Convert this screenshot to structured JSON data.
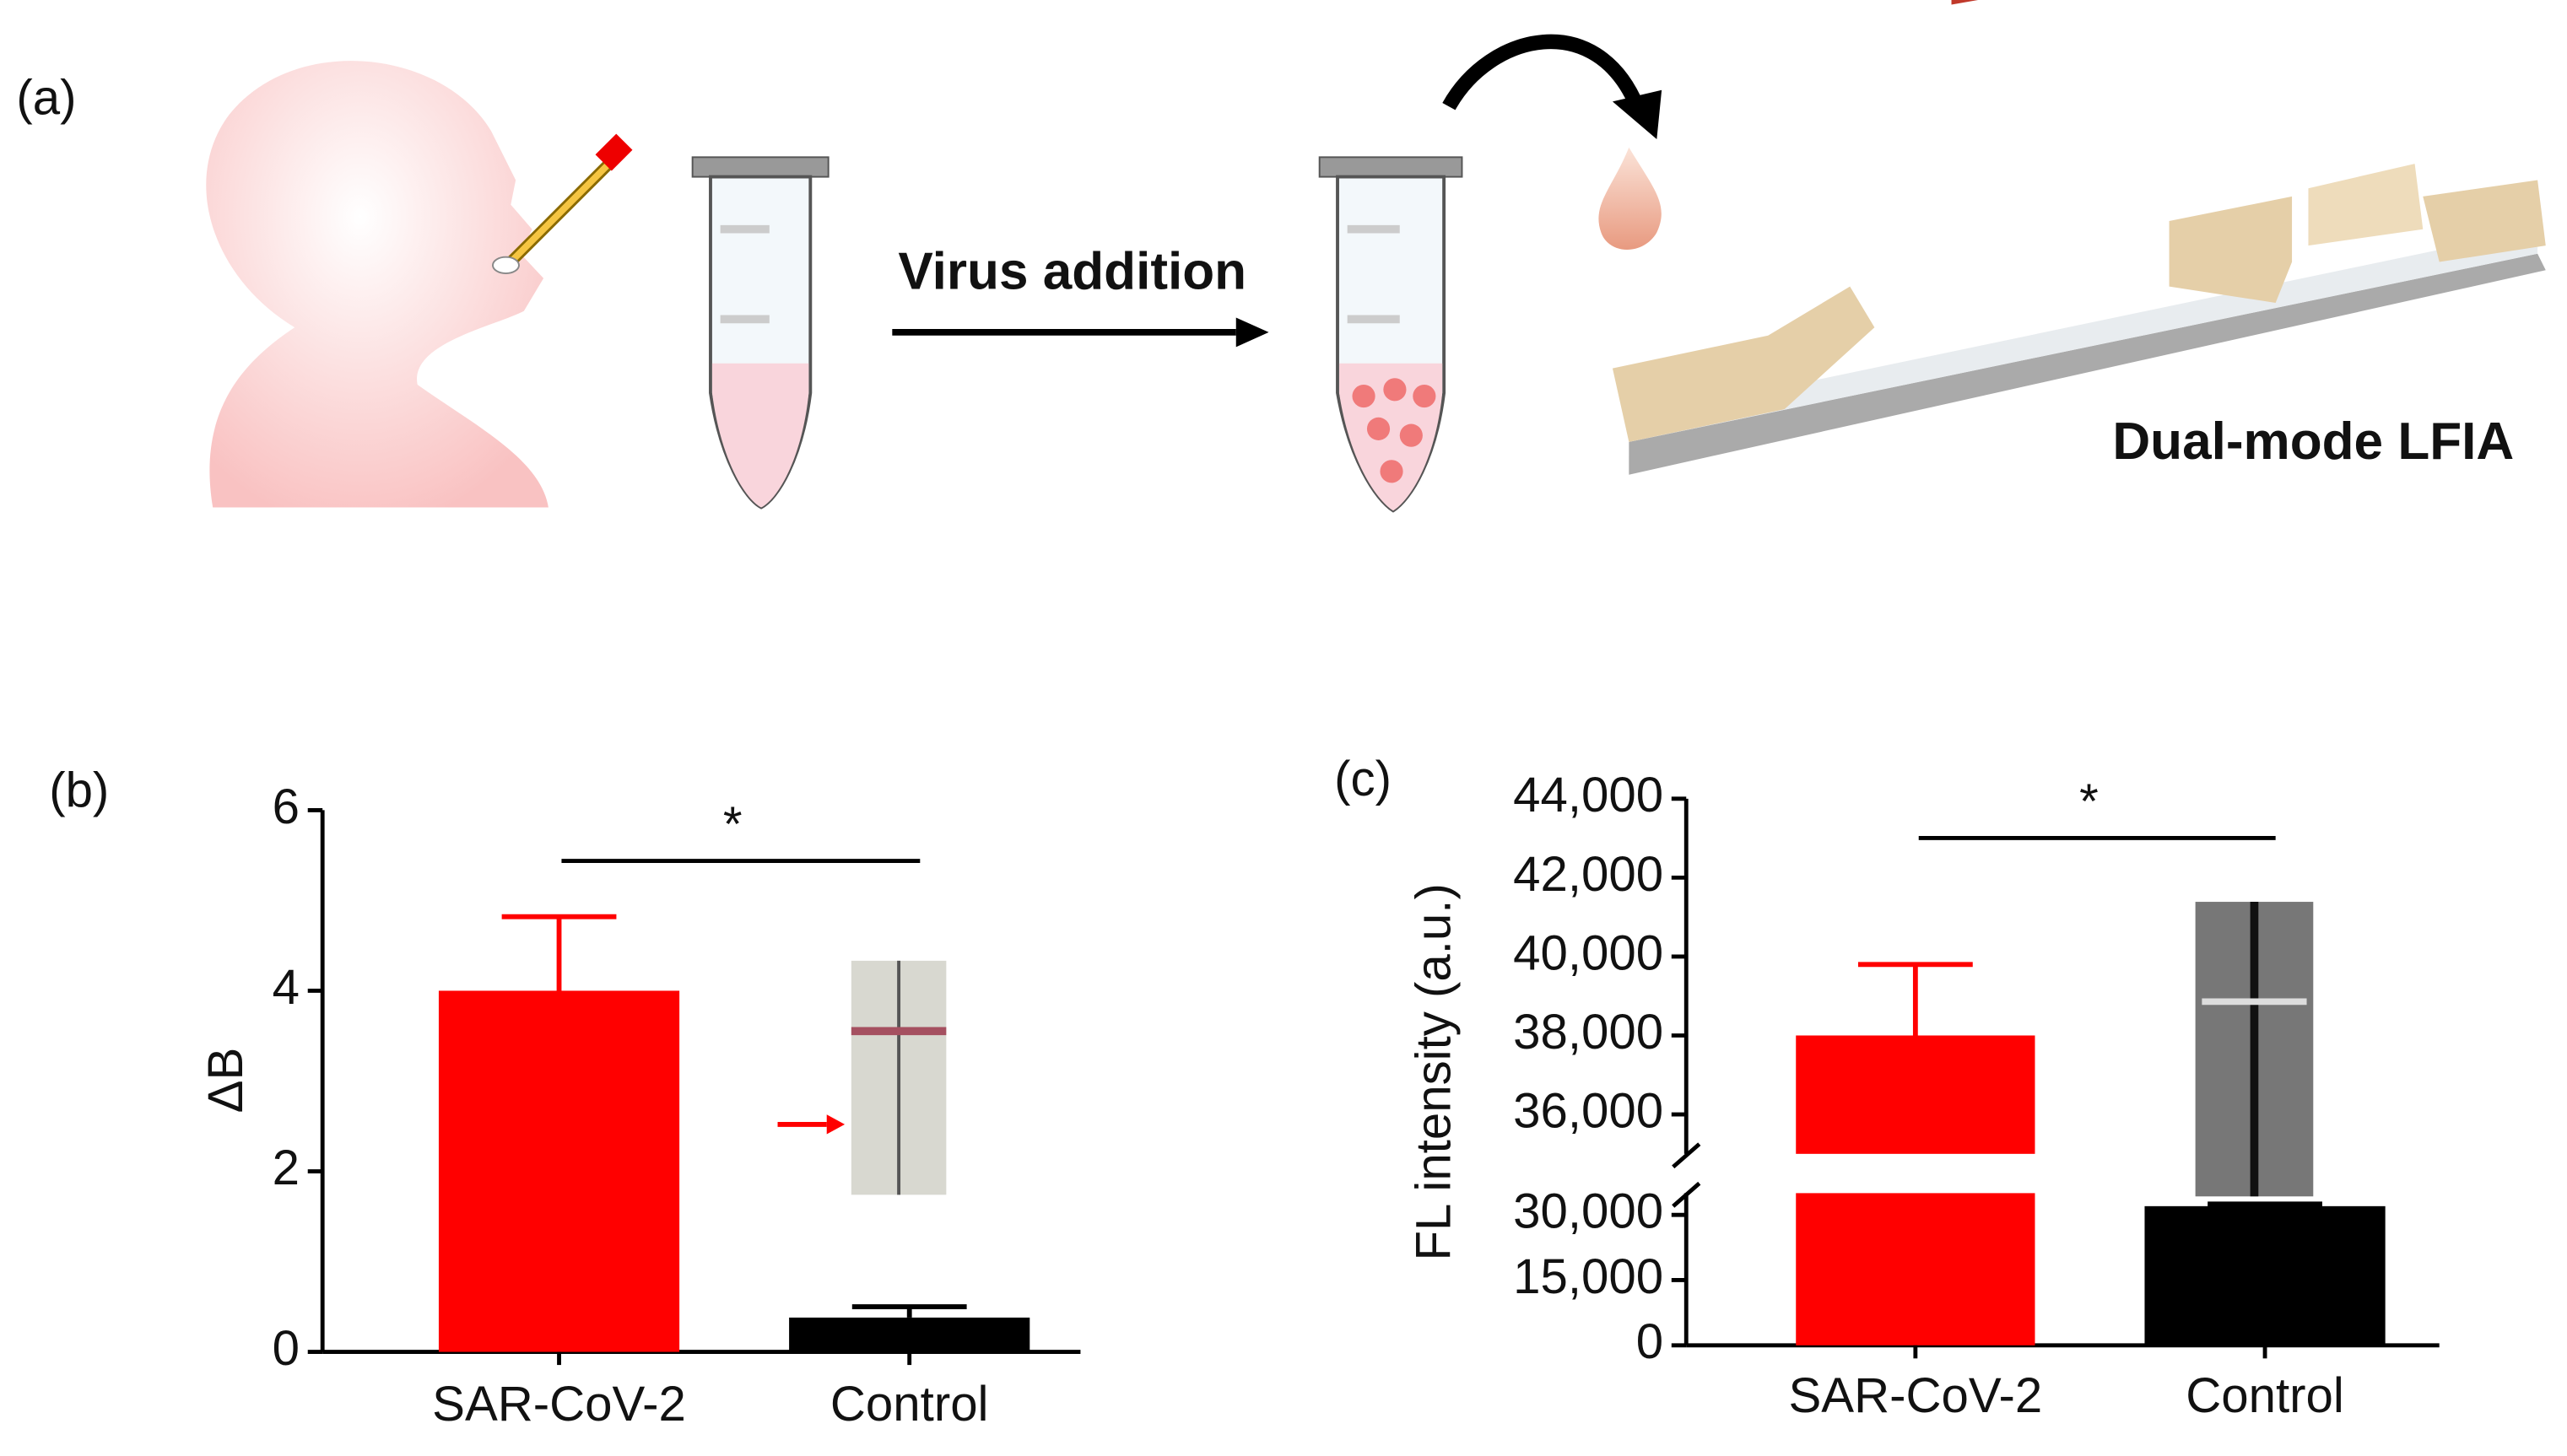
{
  "panel_a": {
    "label": "(a)",
    "step": "Virus addition",
    "device": "Dual-mode LFIA"
  },
  "chart_data": [
    {
      "type": "bar",
      "panel_label": "(b)",
      "ylabel": "ΔB",
      "annotation": "*",
      "categories": [
        "SAR-CoV-2",
        "Control"
      ],
      "values": [
        4.0,
        0.38
      ],
      "errors": [
        0.82,
        0.12
      ],
      "colors": [
        "#ff0000",
        "#000000"
      ],
      "ylim": [
        0,
        6
      ],
      "yticks": [
        0,
        2,
        4,
        6
      ]
    },
    {
      "type": "bar",
      "panel_label": "(c)",
      "ylabel": "FL intensity (a.u.)",
      "annotation": "*",
      "categories": [
        "SAR-CoV-2",
        "Control"
      ],
      "values": [
        38000,
        32000
      ],
      "errors": [
        1800,
        500
      ],
      "colors": [
        "#ff0000",
        "#000000"
      ],
      "y_segments": [
        {
          "ylim": [
            0,
            35000
          ],
          "yticks": [
            0,
            {
              "value": 15000,
              "label": "15,000"
            },
            {
              "value": 30000,
              "label": "30,000"
            }
          ]
        },
        {
          "ylim": [
            35000,
            44000
          ],
          "yticks": [
            {
              "value": 36000,
              "label": "36,000"
            },
            {
              "value": 38000,
              "label": "38,000"
            },
            {
              "value": 40000,
              "label": "40,000"
            },
            {
              "value": 42000,
              "label": "42,000"
            },
            {
              "value": 44000,
              "label": "44,000"
            }
          ]
        }
      ]
    }
  ]
}
